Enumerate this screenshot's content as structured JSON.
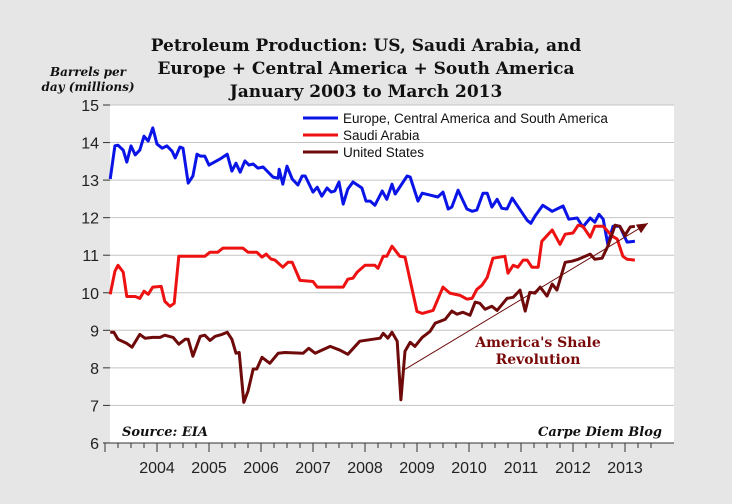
{
  "chart_data": {
    "type": "line",
    "title": [
      "Petroleum Production: US, Saudi Arabia, and",
      "Europe + Central America + South America",
      "January 2003 to March 2013"
    ],
    "ylabel": [
      "Barrels per",
      "day (millions)"
    ],
    "xlabel": "",
    "ylim": [
      6,
      15
    ],
    "xlim": [
      2003,
      2013.6
    ],
    "yticks": [
      6,
      7,
      8,
      9,
      10,
      11,
      12,
      13,
      14,
      15
    ],
    "xticks": [
      2004,
      2005,
      2006,
      2007,
      2008,
      2009,
      2010,
      2011,
      2012,
      2013
    ],
    "grid": true,
    "legend_position": "top-right",
    "series": [
      {
        "name": "Europe, Central America and South America",
        "color": "#0a14e6",
        "points": [
          [
            2003.1,
            13.03
          ],
          [
            2003.19,
            13.91
          ],
          [
            2003.25,
            13.93
          ],
          [
            2003.35,
            13.8
          ],
          [
            2003.42,
            13.48
          ],
          [
            2003.5,
            13.91
          ],
          [
            2003.58,
            13.67
          ],
          [
            2003.67,
            13.8
          ],
          [
            2003.75,
            14.17
          ],
          [
            2003.83,
            14.04
          ],
          [
            2003.92,
            14.39
          ],
          [
            2004.0,
            13.96
          ],
          [
            2004.1,
            13.85
          ],
          [
            2004.19,
            13.91
          ],
          [
            2004.29,
            13.77
          ],
          [
            2004.35,
            13.59
          ],
          [
            2004.44,
            13.88
          ],
          [
            2004.5,
            13.85
          ],
          [
            2004.6,
            12.92
          ],
          [
            2004.69,
            13.11
          ],
          [
            2004.77,
            13.69
          ],
          [
            2004.83,
            13.64
          ],
          [
            2004.92,
            13.64
          ],
          [
            2005.0,
            13.4
          ],
          [
            2005.21,
            13.56
          ],
          [
            2005.35,
            13.69
          ],
          [
            2005.44,
            13.24
          ],
          [
            2005.52,
            13.45
          ],
          [
            2005.6,
            13.21
          ],
          [
            2005.69,
            13.51
          ],
          [
            2005.77,
            13.4
          ],
          [
            2005.85,
            13.43
          ],
          [
            2005.94,
            13.32
          ],
          [
            2006.04,
            13.35
          ],
          [
            2006.23,
            13.08
          ],
          [
            2006.33,
            13.05
          ],
          [
            2006.35,
            13.29
          ],
          [
            2006.42,
            12.89
          ],
          [
            2006.5,
            13.37
          ],
          [
            2006.6,
            13.03
          ],
          [
            2006.71,
            12.87
          ],
          [
            2006.79,
            13.11
          ],
          [
            2006.85,
            13.11
          ],
          [
            2007.0,
            12.68
          ],
          [
            2007.08,
            12.81
          ],
          [
            2007.17,
            12.57
          ],
          [
            2007.27,
            12.79
          ],
          [
            2007.35,
            12.68
          ],
          [
            2007.42,
            12.71
          ],
          [
            2007.5,
            12.95
          ],
          [
            2007.58,
            12.36
          ],
          [
            2007.67,
            12.76
          ],
          [
            2007.77,
            12.95
          ],
          [
            2007.94,
            12.79
          ],
          [
            2008.02,
            12.44
          ],
          [
            2008.1,
            12.44
          ],
          [
            2008.19,
            12.33
          ],
          [
            2008.33,
            12.71
          ],
          [
            2008.42,
            12.49
          ],
          [
            2008.52,
            12.89
          ],
          [
            2008.58,
            12.63
          ],
          [
            2008.81,
            13.11
          ],
          [
            2008.87,
            13.08
          ],
          [
            2009.02,
            12.44
          ],
          [
            2009.1,
            12.65
          ],
          [
            2009.25,
            12.6
          ],
          [
            2009.4,
            12.55
          ],
          [
            2009.5,
            12.68
          ],
          [
            2009.6,
            12.23
          ],
          [
            2009.67,
            12.28
          ],
          [
            2009.79,
            12.73
          ],
          [
            2009.96,
            12.23
          ],
          [
            2010.06,
            12.17
          ],
          [
            2010.15,
            12.2
          ],
          [
            2010.27,
            12.65
          ],
          [
            2010.35,
            12.65
          ],
          [
            2010.44,
            12.28
          ],
          [
            2010.54,
            12.49
          ],
          [
            2010.63,
            12.25
          ],
          [
            2010.73,
            12.23
          ],
          [
            2010.83,
            12.52
          ],
          [
            2011.12,
            11.93
          ],
          [
            2011.19,
            11.85
          ],
          [
            2011.27,
            12.04
          ],
          [
            2011.42,
            12.33
          ],
          [
            2011.6,
            12.17
          ],
          [
            2011.81,
            12.31
          ],
          [
            2011.92,
            11.96
          ],
          [
            2012.08,
            11.99
          ],
          [
            2012.19,
            11.75
          ],
          [
            2012.33,
            11.99
          ],
          [
            2012.42,
            11.88
          ],
          [
            2012.5,
            12.09
          ],
          [
            2012.58,
            11.96
          ],
          [
            2012.67,
            11.29
          ],
          [
            2012.77,
            11.77
          ],
          [
            2012.9,
            11.77
          ],
          [
            2013.04,
            11.35
          ],
          [
            2013.19,
            11.37
          ]
        ]
      },
      {
        "name": "Saudi Arabia",
        "color": "#ee1111",
        "points": [
          [
            2003.1,
            9.96
          ],
          [
            2003.19,
            10.57
          ],
          [
            2003.25,
            10.73
          ],
          [
            2003.35,
            10.55
          ],
          [
            2003.42,
            9.9
          ],
          [
            2003.58,
            9.9
          ],
          [
            2003.67,
            9.85
          ],
          [
            2003.75,
            10.04
          ],
          [
            2003.83,
            9.96
          ],
          [
            2003.92,
            10.15
          ],
          [
            2004.08,
            10.17
          ],
          [
            2004.15,
            9.77
          ],
          [
            2004.25,
            9.64
          ],
          [
            2004.33,
            9.72
          ],
          [
            2004.42,
            10.97
          ],
          [
            2004.92,
            10.97
          ],
          [
            2005.02,
            11.08
          ],
          [
            2005.17,
            11.08
          ],
          [
            2005.27,
            11.19
          ],
          [
            2005.65,
            11.19
          ],
          [
            2005.75,
            11.08
          ],
          [
            2005.92,
            11.08
          ],
          [
            2006.02,
            10.95
          ],
          [
            2006.1,
            11.03
          ],
          [
            2006.19,
            10.9
          ],
          [
            2006.27,
            10.87
          ],
          [
            2006.42,
            10.68
          ],
          [
            2006.52,
            10.81
          ],
          [
            2006.6,
            10.81
          ],
          [
            2006.75,
            10.33
          ],
          [
            2007.0,
            10.3
          ],
          [
            2007.08,
            10.15
          ],
          [
            2007.58,
            10.15
          ],
          [
            2007.67,
            10.36
          ],
          [
            2007.77,
            10.39
          ],
          [
            2007.85,
            10.55
          ],
          [
            2008.0,
            10.73
          ],
          [
            2008.19,
            10.73
          ],
          [
            2008.25,
            10.65
          ],
          [
            2008.35,
            10.97
          ],
          [
            2008.42,
            10.97
          ],
          [
            2008.52,
            11.24
          ],
          [
            2008.67,
            10.97
          ],
          [
            2008.77,
            10.95
          ],
          [
            2009.0,
            9.5
          ],
          [
            2009.1,
            9.45
          ],
          [
            2009.31,
            9.53
          ],
          [
            2009.5,
            10.15
          ],
          [
            2009.63,
            9.99
          ],
          [
            2009.83,
            9.93
          ],
          [
            2009.96,
            9.83
          ],
          [
            2010.06,
            9.85
          ],
          [
            2010.15,
            10.09
          ],
          [
            2010.25,
            10.2
          ],
          [
            2010.35,
            10.41
          ],
          [
            2010.46,
            10.92
          ],
          [
            2010.69,
            10.97
          ],
          [
            2010.75,
            10.52
          ],
          [
            2010.85,
            10.73
          ],
          [
            2010.94,
            10.68
          ],
          [
            2011.04,
            10.87
          ],
          [
            2011.12,
            10.87
          ],
          [
            2011.21,
            10.68
          ],
          [
            2011.33,
            10.68
          ],
          [
            2011.4,
            11.37
          ],
          [
            2011.6,
            11.67
          ],
          [
            2011.75,
            11.29
          ],
          [
            2011.85,
            11.56
          ],
          [
            2012.0,
            11.59
          ],
          [
            2012.1,
            11.8
          ],
          [
            2012.19,
            11.77
          ],
          [
            2012.33,
            11.48
          ],
          [
            2012.42,
            11.77
          ],
          [
            2012.58,
            11.77
          ],
          [
            2012.75,
            11.51
          ],
          [
            2012.85,
            11.43
          ],
          [
            2012.96,
            10.97
          ],
          [
            2013.04,
            10.89
          ],
          [
            2013.19,
            10.87
          ]
        ]
      },
      {
        "name": "United States",
        "color": "#6e0a0a",
        "points": [
          [
            2003.1,
            8.95
          ],
          [
            2003.17,
            8.95
          ],
          [
            2003.25,
            8.76
          ],
          [
            2003.42,
            8.65
          ],
          [
            2003.52,
            8.55
          ],
          [
            2003.67,
            8.89
          ],
          [
            2003.77,
            8.79
          ],
          [
            2003.92,
            8.81
          ],
          [
            2004.06,
            8.81
          ],
          [
            2004.15,
            8.87
          ],
          [
            2004.31,
            8.81
          ],
          [
            2004.42,
            8.63
          ],
          [
            2004.54,
            8.76
          ],
          [
            2004.6,
            8.76
          ],
          [
            2004.69,
            8.31
          ],
          [
            2004.83,
            8.84
          ],
          [
            2004.92,
            8.87
          ],
          [
            2005.02,
            8.73
          ],
          [
            2005.12,
            8.84
          ],
          [
            2005.25,
            8.89
          ],
          [
            2005.35,
            8.95
          ],
          [
            2005.44,
            8.76
          ],
          [
            2005.52,
            8.39
          ],
          [
            2005.58,
            8.41
          ],
          [
            2005.67,
            7.08
          ],
          [
            2005.75,
            7.38
          ],
          [
            2005.85,
            7.97
          ],
          [
            2005.92,
            7.97
          ],
          [
            2006.02,
            8.28
          ],
          [
            2006.17,
            8.12
          ],
          [
            2006.33,
            8.39
          ],
          [
            2006.46,
            8.41
          ],
          [
            2006.81,
            8.39
          ],
          [
            2006.92,
            8.52
          ],
          [
            2007.04,
            8.39
          ],
          [
            2007.33,
            8.57
          ],
          [
            2007.52,
            8.47
          ],
          [
            2007.67,
            8.36
          ],
          [
            2007.9,
            8.71
          ],
          [
            2008.29,
            8.79
          ],
          [
            2008.35,
            8.92
          ],
          [
            2008.44,
            8.79
          ],
          [
            2008.52,
            8.95
          ],
          [
            2008.62,
            8.71
          ],
          [
            2008.69,
            7.15
          ],
          [
            2008.77,
            8.44
          ],
          [
            2008.87,
            8.68
          ],
          [
            2008.96,
            8.57
          ],
          [
            2009.1,
            8.81
          ],
          [
            2009.25,
            8.97
          ],
          [
            2009.35,
            9.19
          ],
          [
            2009.54,
            9.29
          ],
          [
            2009.67,
            9.51
          ],
          [
            2009.77,
            9.43
          ],
          [
            2009.88,
            9.48
          ],
          [
            2010.02,
            9.4
          ],
          [
            2010.12,
            9.75
          ],
          [
            2010.21,
            9.72
          ],
          [
            2010.31,
            9.56
          ],
          [
            2010.44,
            9.64
          ],
          [
            2010.54,
            9.53
          ],
          [
            2010.73,
            9.85
          ],
          [
            2010.85,
            9.88
          ],
          [
            2010.98,
            10.07
          ],
          [
            2011.08,
            9.51
          ],
          [
            2011.17,
            10.01
          ],
          [
            2011.27,
            9.99
          ],
          [
            2011.37,
            10.15
          ],
          [
            2011.5,
            9.91
          ],
          [
            2011.6,
            10.23
          ],
          [
            2011.69,
            10.07
          ],
          [
            2011.85,
            10.81
          ],
          [
            2011.98,
            10.84
          ],
          [
            2012.1,
            10.89
          ],
          [
            2012.33,
            11.03
          ],
          [
            2012.42,
            10.89
          ],
          [
            2012.56,
            10.92
          ],
          [
            2012.67,
            11.24
          ],
          [
            2012.81,
            11.8
          ],
          [
            2012.9,
            11.77
          ],
          [
            2013.0,
            11.53
          ],
          [
            2013.1,
            11.75
          ],
          [
            2013.19,
            11.77
          ]
        ]
      }
    ],
    "annotations": {
      "trend_arrow": {
        "from": [
          2008.77,
          7.96
        ],
        "to": [
          2013.44,
          11.85
        ],
        "color": "#6e0a0a"
      },
      "trend_label": [
        "America's Shale",
        "Revolution"
      ],
      "source": "Source: EIA",
      "credit": "Carpe Diem Blog"
    }
  }
}
